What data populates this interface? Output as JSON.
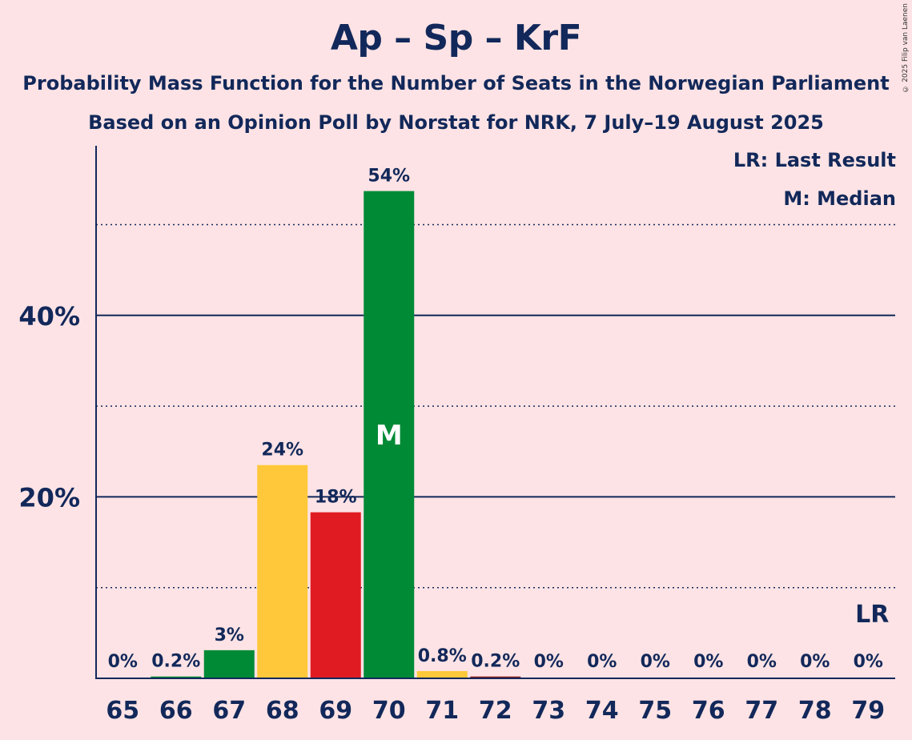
{
  "title": "Ap – Sp – KrF",
  "subtitle1": "Probability Mass Function for the Number of Seats in the Norwegian Parliament",
  "subtitle2": "Based on an Opinion Poll by Norstat for NRK, 7 July–19 August 2025",
  "copyright": "© 2025 Filip van Laenen",
  "legend": {
    "last_result": "LR: Last Result",
    "median": "M: Median"
  },
  "colors": {
    "background": "#fde3e5",
    "text": "#12285a",
    "green": "#008a36",
    "yellow": "#ffc83a",
    "red": "#e01b22",
    "brown": "#8b1a1a"
  },
  "chart_data": {
    "type": "bar",
    "categories": [
      "65",
      "66",
      "67",
      "68",
      "69",
      "70",
      "71",
      "72",
      "73",
      "74",
      "75",
      "76",
      "77",
      "78",
      "79"
    ],
    "values": [
      0,
      0.2,
      3.1,
      23.5,
      18.3,
      53.7,
      0.8,
      0.2,
      0,
      0,
      0,
      0,
      0,
      0,
      0
    ],
    "value_labels": [
      "0%",
      "0.2%",
      "3%",
      "24%",
      "18%",
      "54%",
      "0.8%",
      "0.2%",
      "0%",
      "0%",
      "0%",
      "0%",
      "0%",
      "0%",
      "0%"
    ],
    "bar_colors": [
      "green",
      "green",
      "green",
      "yellow",
      "red",
      "green",
      "yellow",
      "brown",
      "green",
      "green",
      "green",
      "green",
      "green",
      "green",
      "green"
    ],
    "median": "70",
    "median_label": "M",
    "last_result": "79",
    "last_result_label": "LR",
    "ylim": [
      0,
      58
    ],
    "yticks": [
      20,
      40
    ],
    "ytick_labels": [
      "20%",
      "40%"
    ],
    "minor_gridlines": [
      10,
      30,
      50
    ],
    "grid": true
  }
}
